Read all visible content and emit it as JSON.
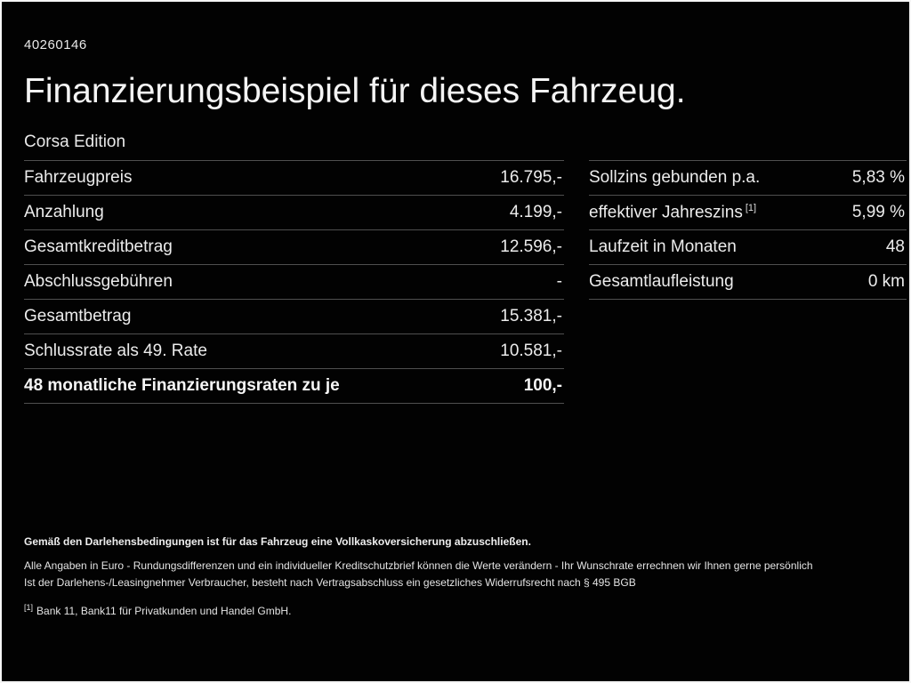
{
  "page": {
    "doc_id": "40260146",
    "title": "Finanzierungsbeispiel für dieses Fahrzeug.",
    "model": "Corsa Edition"
  },
  "left_table": {
    "rows": [
      {
        "label": "Fahrzeugpreis",
        "value": "16.795,-"
      },
      {
        "label": "Anzahlung",
        "value": "4.199,-"
      },
      {
        "label": "Gesamtkreditbetrag",
        "value": "12.596,-"
      },
      {
        "label": "Abschlussgebühren",
        "value": "-"
      },
      {
        "label": "Gesamtbetrag",
        "value": "15.381,-"
      },
      {
        "label": "Schlussrate als 49. Rate",
        "value": "10.581,-"
      },
      {
        "label": "48 monatliche Finanzierungsraten zu je",
        "value": "100,-"
      }
    ]
  },
  "right_table": {
    "rows": [
      {
        "label": "Sollzins gebunden p.a.",
        "sup": "",
        "value": "5,83 %"
      },
      {
        "label": "effektiver Jahreszins",
        "sup": "[1]",
        "value": "5,99 %"
      },
      {
        "label": "Laufzeit in Monaten",
        "sup": "",
        "value": "48"
      },
      {
        "label": "Gesamtlaufleistung",
        "sup": "",
        "value": "0 km"
      }
    ]
  },
  "footer": {
    "bold_line": "Gemäß den Darlehensbedingungen ist für das Fahrzeug eine Vollkaskoversicherung abzuschließen.",
    "line2": "Alle Angaben in Euro - Rundungsdifferenzen und ein individueller Kreditschutzbrief können die Werte verändern - Ihr Wunschrate errechnen wir Ihnen gerne persönlich",
    "line3": "Ist der Darlehens-/Leasingnehmer Verbraucher, besteht nach Vertragsabschluss ein gesetzliches Widerrufsrecht nach § 495 BGB",
    "footnote_marker": "[1]",
    "footnote_text": "Bank 11, Bank11 für Privatkunden und Handel GmbH."
  },
  "colors": {
    "background": "#000000",
    "text": "#ececec",
    "divider": "#4f4f4f",
    "frame_border": "#f5f5f5"
  }
}
